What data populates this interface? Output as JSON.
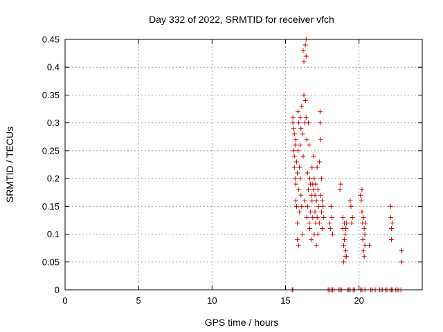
{
  "chart_data": {
    "type": "scatter",
    "title": "Day 332 of 2022, SRMTID for receiver vfch",
    "xlabel": "GPS time / hours",
    "ylabel": "SRMTID / TECUs",
    "xlim": [
      0,
      24.3
    ],
    "ylim": [
      0,
      0.45
    ],
    "xticks": [
      0,
      5,
      10,
      15,
      20
    ],
    "yticks": [
      0,
      0.05,
      0.1,
      0.15,
      0.2,
      0.25,
      0.3,
      0.35,
      0.4,
      0.45
    ],
    "xtick_labels": [
      "0",
      "5",
      "10",
      "15",
      "20"
    ],
    "ytick_labels": [
      "0",
      "0.05",
      "0.1",
      "0.15",
      "0.2",
      "0.25",
      "0.3",
      "0.35",
      "0.4",
      "0.45"
    ],
    "grid": true,
    "legend": "none",
    "marker": "+",
    "color": "#cc0000",
    "series": [
      {
        "points": [
          [
            15.5,
            0.31
          ],
          [
            15.5,
            0.3
          ],
          [
            15.55,
            0.29
          ],
          [
            15.55,
            0.25
          ],
          [
            15.6,
            0.28
          ],
          [
            15.6,
            0.24
          ],
          [
            15.6,
            0.22
          ],
          [
            15.65,
            0.26
          ],
          [
            15.65,
            0.2
          ],
          [
            15.7,
            0.27
          ],
          [
            15.7,
            0.19
          ],
          [
            15.7,
            0.16
          ],
          [
            15.75,
            0.23
          ],
          [
            15.75,
            0.15
          ],
          [
            15.8,
            0.21
          ],
          [
            15.8,
            0.12
          ],
          [
            15.8,
            0.09
          ],
          [
            15.85,
            0.25
          ],
          [
            15.85,
            0.32
          ],
          [
            15.9,
            0.3
          ],
          [
            15.9,
            0.18
          ],
          [
            15.9,
            0.08
          ],
          [
            15.95,
            0.22
          ],
          [
            15.95,
            0.14
          ],
          [
            16.0,
            0.31
          ],
          [
            16.0,
            0.26
          ],
          [
            16.0,
            0.2
          ],
          [
            16.05,
            0.29
          ],
          [
            16.05,
            0.17
          ],
          [
            16.1,
            0.33
          ],
          [
            16.1,
            0.15
          ],
          [
            16.15,
            0.28
          ],
          [
            16.15,
            0.1
          ],
          [
            16.2,
            0.24
          ],
          [
            16.2,
            0.43
          ],
          [
            16.25,
            0.41
          ],
          [
            16.25,
            0.35
          ],
          [
            16.3,
            0.3
          ],
          [
            16.3,
            0.16
          ],
          [
            16.35,
            0.44
          ],
          [
            16.35,
            0.34
          ],
          [
            16.4,
            0.45
          ],
          [
            16.4,
            0.42
          ],
          [
            16.4,
            0.31
          ],
          [
            16.45,
            0.27
          ],
          [
            16.45,
            0.13
          ],
          [
            16.5,
            0.21
          ],
          [
            16.5,
            0.15
          ],
          [
            16.55,
            0.3
          ],
          [
            16.55,
            0.18
          ],
          [
            16.6,
            0.26
          ],
          [
            16.6,
            0.12
          ],
          [
            16.65,
            0.2
          ],
          [
            16.65,
            0.11
          ],
          [
            16.7,
            0.19
          ],
          [
            16.7,
            0.14
          ],
          [
            16.75,
            0.17
          ],
          [
            16.75,
            0.09
          ],
          [
            16.8,
            0.22
          ],
          [
            16.8,
            0.16
          ],
          [
            16.85,
            0.19
          ],
          [
            16.85,
            0.13
          ],
          [
            16.9,
            0.24
          ],
          [
            16.9,
            0.18
          ],
          [
            16.95,
            0.2
          ],
          [
            16.95,
            0.1
          ],
          [
            17.0,
            0.17
          ],
          [
            17.0,
            0.14
          ],
          [
            17.05,
            0.19
          ],
          [
            17.05,
            0.12
          ],
          [
            17.1,
            0.16
          ],
          [
            17.1,
            0.08
          ],
          [
            17.15,
            0.22
          ],
          [
            17.15,
            0.13
          ],
          [
            17.2,
            0.18
          ],
          [
            17.2,
            0.1
          ],
          [
            17.25,
            0.15
          ],
          [
            17.3,
            0.23
          ],
          [
            17.3,
            0.12
          ],
          [
            17.35,
            0.32
          ],
          [
            17.35,
            0.3
          ],
          [
            17.4,
            0.27
          ],
          [
            17.4,
            0.17
          ],
          [
            17.45,
            0.2
          ],
          [
            17.45,
            0.14
          ],
          [
            17.5,
            0.16
          ],
          [
            17.5,
            0.11
          ],
          [
            17.55,
            0.15
          ],
          [
            17.6,
            0.13
          ],
          [
            18.0,
            0.12
          ],
          [
            18.05,
            0.11
          ],
          [
            18.1,
            0.15
          ],
          [
            18.15,
            0.13
          ],
          [
            18.2,
            0.1
          ],
          [
            18.7,
            0.18
          ],
          [
            18.75,
            0.19
          ],
          [
            18.9,
            0.13
          ],
          [
            18.9,
            0.11
          ],
          [
            18.95,
            0.08
          ],
          [
            18.95,
            0.05
          ],
          [
            19.0,
            0.12
          ],
          [
            19.0,
            0.09
          ],
          [
            19.05,
            0.1
          ],
          [
            19.05,
            0.06
          ],
          [
            19.1,
            0.07
          ],
          [
            19.1,
            0.11
          ],
          [
            19.15,
            0.06
          ],
          [
            19.15,
            0.12
          ],
          [
            19.4,
            0.16
          ],
          [
            19.45,
            0.15
          ],
          [
            19.5,
            0.12
          ],
          [
            19.55,
            0.13
          ],
          [
            20.1,
            0.17
          ],
          [
            20.15,
            0.16
          ],
          [
            20.2,
            0.18
          ],
          [
            20.2,
            0.14
          ],
          [
            20.25,
            0.12
          ],
          [
            20.25,
            0.09
          ],
          [
            20.3,
            0.13
          ],
          [
            20.3,
            0.07
          ],
          [
            20.35,
            0.11
          ],
          [
            20.35,
            0.06
          ],
          [
            20.4,
            0.1
          ],
          [
            20.4,
            0.08
          ],
          [
            20.45,
            0.12
          ],
          [
            20.7,
            0.08
          ],
          [
            22.15,
            0.15
          ],
          [
            22.15,
            0.13
          ],
          [
            22.2,
            0.11
          ],
          [
            22.2,
            0.09
          ],
          [
            22.25,
            0.12
          ],
          [
            22.9,
            0.07
          ],
          [
            22.9,
            0.05
          ],
          [
            15.45,
            0.0
          ],
          [
            15.5,
            0.0
          ],
          [
            17.9,
            0.0
          ],
          [
            18.0,
            0.0
          ],
          [
            18.1,
            0.0
          ],
          [
            18.2,
            0.0
          ],
          [
            18.3,
            0.0
          ],
          [
            18.6,
            0.0
          ],
          [
            18.7,
            0.0
          ],
          [
            18.8,
            0.0
          ],
          [
            19.2,
            0.0
          ],
          [
            19.3,
            0.0
          ],
          [
            19.4,
            0.0
          ],
          [
            19.6,
            0.0
          ],
          [
            19.7,
            0.0
          ],
          [
            20.1,
            0.0
          ],
          [
            20.2,
            0.0
          ],
          [
            20.4,
            0.0
          ],
          [
            20.8,
            0.0
          ],
          [
            20.9,
            0.0
          ],
          [
            21.1,
            0.0
          ],
          [
            21.4,
            0.0
          ],
          [
            21.5,
            0.0
          ],
          [
            21.6,
            0.0
          ],
          [
            21.8,
            0.0
          ],
          [
            21.9,
            0.0
          ],
          [
            22.1,
            0.0
          ],
          [
            22.2,
            0.0
          ],
          [
            22.3,
            0.0
          ],
          [
            22.5,
            0.0
          ],
          [
            22.6,
            0.0
          ],
          [
            22.7,
            0.0
          ],
          [
            22.85,
            0.0
          ]
        ]
      }
    ]
  }
}
